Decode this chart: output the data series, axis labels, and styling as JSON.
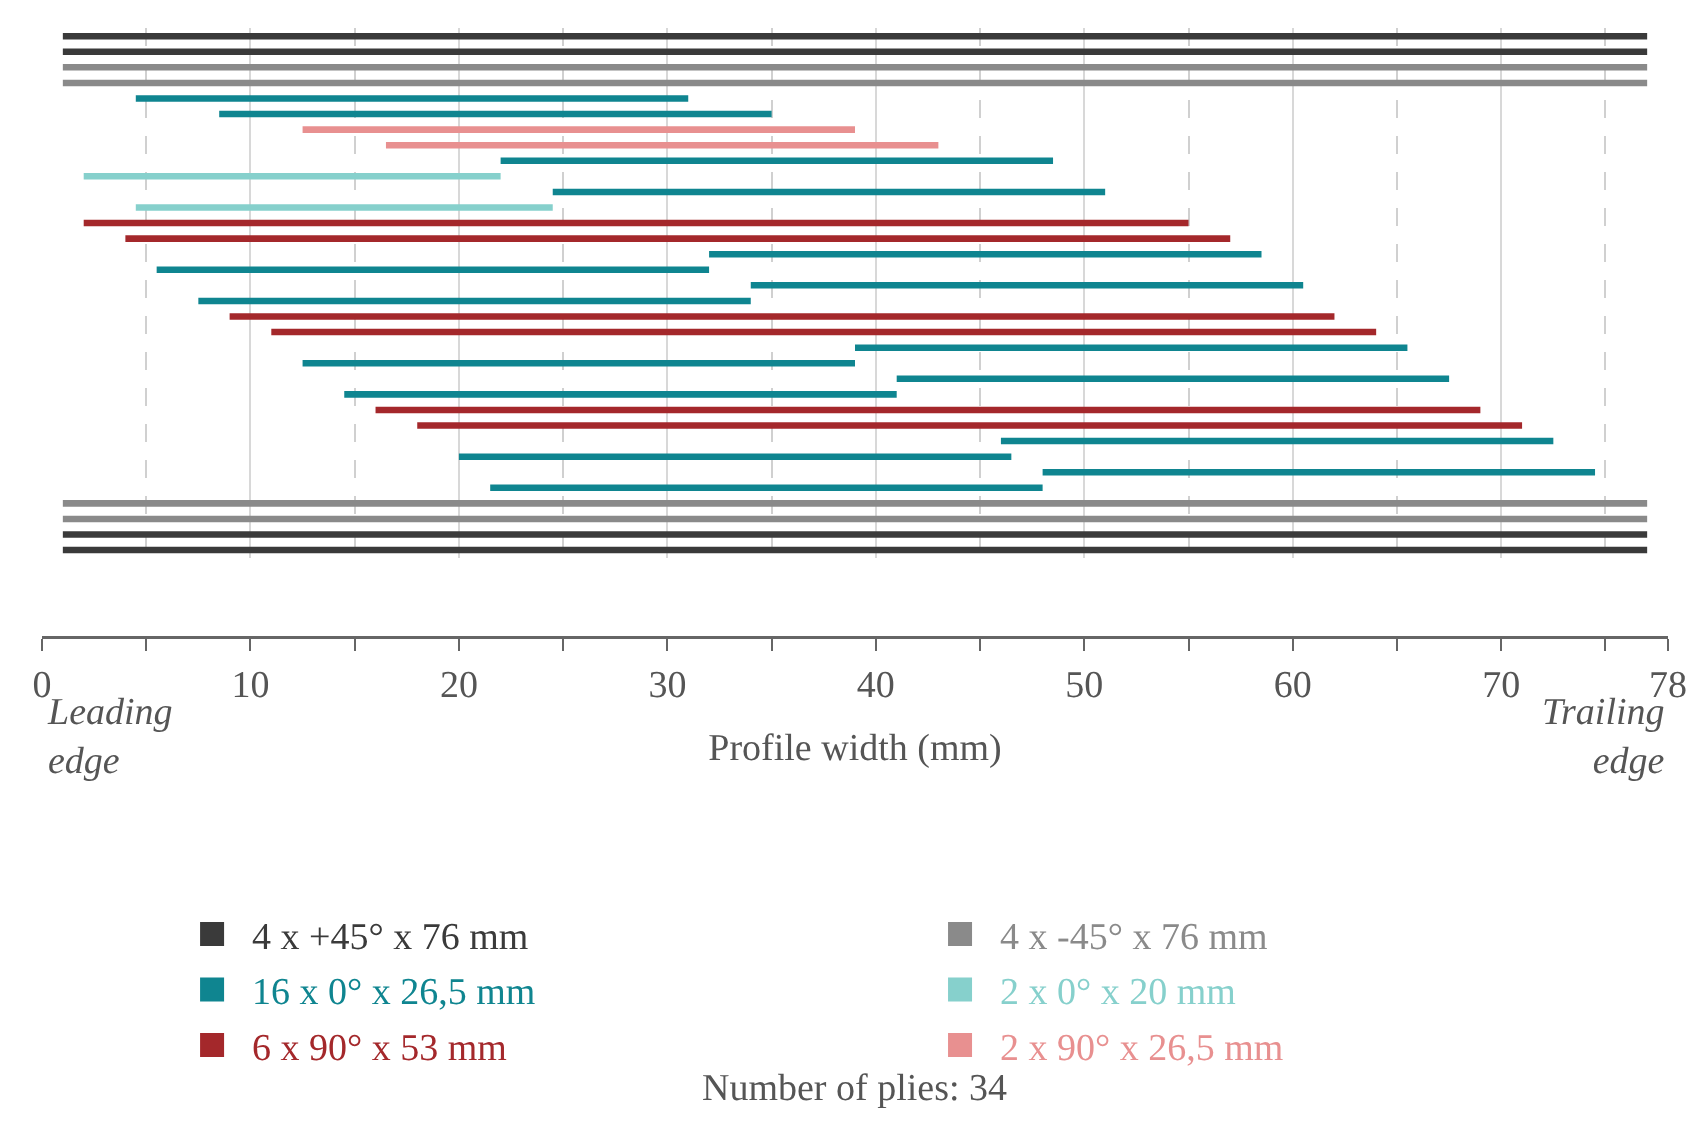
{
  "chart_data": {
    "type": "bar",
    "orientation": "horizontal",
    "xlabel": "Profile width (mm)",
    "categories": [
      null,
      null,
      null,
      null,
      null,
      null,
      null,
      null,
      null,
      null,
      null,
      null,
      null,
      null,
      null,
      null,
      null,
      null,
      null,
      null,
      null,
      null,
      null,
      null,
      null,
      null,
      null,
      null,
      null,
      null,
      null,
      null,
      null,
      null
    ],
    "series": [
      {
        "name": "4 x +45° x 76 mm",
        "color": "#3a3a3a",
        "values": [
          76,
          76,
          null,
          null,
          null,
          null,
          null,
          null,
          null,
          null,
          null,
          null,
          null,
          null,
          null,
          null,
          null,
          null,
          null,
          null,
          null,
          null,
          null,
          null,
          null,
          null,
          null,
          null,
          null,
          null,
          null,
          null,
          76,
          76
        ],
        "base": [
          1,
          1,
          null,
          null,
          null,
          null,
          null,
          null,
          null,
          null,
          null,
          null,
          null,
          null,
          null,
          null,
          null,
          null,
          null,
          null,
          null,
          null,
          null,
          null,
          null,
          null,
          null,
          null,
          null,
          null,
          null,
          null,
          1,
          1
        ]
      },
      {
        "name": "4 x -45° x 76 mm",
        "color": "#8a8a8a",
        "values": [
          null,
          null,
          76,
          76,
          null,
          null,
          null,
          null,
          null,
          null,
          null,
          null,
          null,
          null,
          null,
          null,
          null,
          null,
          null,
          null,
          null,
          null,
          null,
          null,
          null,
          null,
          null,
          null,
          null,
          null,
          76,
          76,
          null,
          null
        ],
        "base": [
          null,
          null,
          1,
          1,
          null,
          null,
          null,
          null,
          null,
          null,
          null,
          null,
          null,
          null,
          null,
          null,
          null,
          null,
          null,
          null,
          null,
          null,
          null,
          null,
          null,
          null,
          null,
          null,
          null,
          null,
          1,
          1,
          null,
          null
        ]
      },
      {
        "name": "16 x 0° x 26,5 mm",
        "color": "#0f8590",
        "values": [
          null,
          null,
          null,
          null,
          26.5,
          26.5,
          null,
          null,
          26.5,
          null,
          26.5,
          null,
          null,
          null,
          26.5,
          26.5,
          26.5,
          26.5,
          null,
          null,
          26.5,
          26.5,
          26.5,
          26.5,
          null,
          null,
          26.5,
          26.5,
          26.5,
          26.5,
          null,
          null,
          null,
          null
        ],
        "base": [
          null,
          null,
          null,
          null,
          4.5,
          8.5,
          null,
          null,
          22,
          null,
          24.5,
          null,
          null,
          null,
          32,
          5.5,
          34,
          7.5,
          null,
          null,
          39,
          12.5,
          41,
          14.5,
          null,
          null,
          46,
          20,
          48,
          21.5,
          null,
          null,
          null,
          null
        ]
      },
      {
        "name": "2 x 0° x 20 mm",
        "color": "#86d0cc",
        "values": [
          null,
          null,
          null,
          null,
          null,
          null,
          null,
          null,
          null,
          20,
          null,
          20,
          null,
          null,
          null,
          null,
          null,
          null,
          null,
          null,
          null,
          null,
          null,
          null,
          null,
          null,
          null,
          null,
          null,
          null,
          null,
          null,
          null,
          null
        ],
        "base": [
          null,
          null,
          null,
          null,
          null,
          null,
          null,
          null,
          null,
          2,
          null,
          4.5,
          null,
          null,
          null,
          null,
          null,
          null,
          null,
          null,
          null,
          null,
          null,
          null,
          null,
          null,
          null,
          null,
          null,
          null,
          null,
          null,
          null,
          null
        ]
      },
      {
        "name": "6 x 90° x 53 mm",
        "color": "#a4282b",
        "values": [
          null,
          null,
          null,
          null,
          null,
          null,
          null,
          null,
          null,
          null,
          null,
          null,
          53,
          53,
          null,
          null,
          null,
          null,
          53,
          53,
          null,
          null,
          null,
          null,
          53,
          53,
          null,
          null,
          null,
          null,
          null,
          null,
          null,
          null
        ],
        "base": [
          null,
          null,
          null,
          null,
          null,
          null,
          null,
          null,
          null,
          null,
          null,
          null,
          2,
          4,
          null,
          null,
          null,
          null,
          9,
          11,
          null,
          null,
          null,
          null,
          16,
          18,
          null,
          null,
          null,
          null,
          null,
          null,
          null,
          null
        ]
      },
      {
        "name": "2 x 90° x 26,5 mm",
        "color": "#e89090",
        "values": [
          null,
          null,
          null,
          null,
          null,
          null,
          26.5,
          26.5,
          null,
          null,
          null,
          null,
          null,
          null,
          null,
          null,
          null,
          null,
          null,
          null,
          null,
          null,
          null,
          null,
          null,
          null,
          null,
          null,
          null,
          null,
          null,
          null,
          null,
          null
        ],
        "base": [
          null,
          null,
          null,
          null,
          null,
          null,
          12.5,
          16.5,
          null,
          null,
          null,
          null,
          null,
          null,
          null,
          null,
          null,
          null,
          null,
          null,
          null,
          null,
          null,
          null,
          null,
          null,
          null,
          null,
          null,
          null,
          null,
          null,
          null,
          null
        ]
      }
    ],
    "xlim": [
      0,
      78
    ],
    "xticks": [
      0,
      {
        "value": 5,
        "label": null
      },
      10,
      {
        "value": 15,
        "label": null
      },
      20,
      {
        "value": 25,
        "label": null
      },
      30,
      {
        "value": 35,
        "label": null
      },
      40,
      {
        "value": 45,
        "label": null
      },
      50,
      {
        "value": 55,
        "label": null
      },
      60,
      {
        "value": 65,
        "label": null
      },
      70,
      {
        "value": 75,
        "label": null
      },
      78
    ],
    "grid": "x",
    "legend": "bottom",
    "tick_labels": "x",
    "annotations": [
      "Leading edge",
      "Trailing edge",
      "Number of plies: 34"
    ]
  }
}
